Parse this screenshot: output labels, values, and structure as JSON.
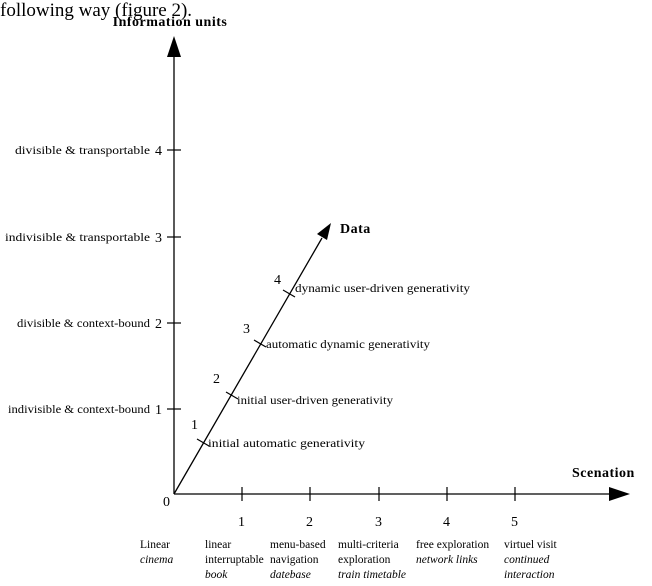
{
  "header_fragment": "following way (figure 2).",
  "origin_label": "0",
  "axes": {
    "vertical": {
      "title": "Information units",
      "ticks": [
        {
          "number": "1",
          "label": "indivisible & context-bound"
        },
        {
          "number": "2",
          "label": "divisible & context-bound"
        },
        {
          "number": "3",
          "label": "indivisible & transportable"
        },
        {
          "number": "4",
          "label": "divisible & transportable"
        }
      ]
    },
    "diagonal": {
      "title": "Data",
      "ticks": [
        {
          "number": "1",
          "label": "initial automatic generativity"
        },
        {
          "number": "2",
          "label": "initial user-driven generativity"
        },
        {
          "number": "3",
          "label": "automatic dynamic generativity"
        },
        {
          "number": "4",
          "label": "dynamic user-driven generativity"
        }
      ]
    },
    "horizontal": {
      "title": "Scenation",
      "origin_caption": {
        "line1": "Linear",
        "example": "cinema"
      },
      "ticks": [
        {
          "number": "1",
          "line1": "linear",
          "line2": "interruptable",
          "example": "book"
        },
        {
          "number": "2",
          "line1": "menu-based",
          "line2": "navigation",
          "example": "datebase"
        },
        {
          "number": "3",
          "line1": "multi-criteria",
          "line2": "exploration",
          "example": "train timetable"
        },
        {
          "number": "4",
          "line1": "free exploration",
          "line2": "",
          "example": "network links"
        },
        {
          "number": "5",
          "line1": "virtuel visit",
          "line2": "",
          "example": "continued",
          "example2": "interaction"
        }
      ]
    }
  }
}
